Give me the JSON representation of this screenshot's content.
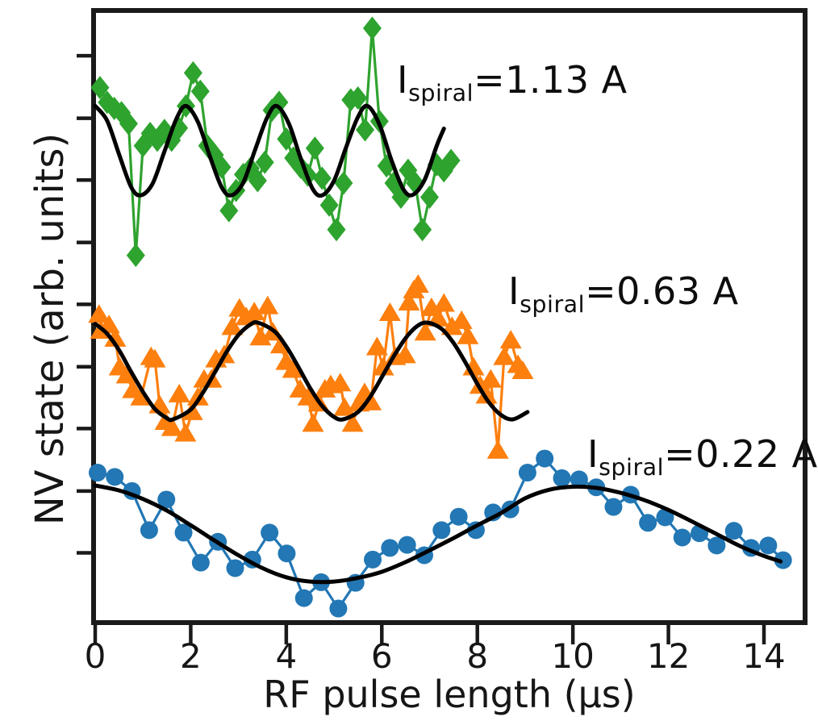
{
  "figure": {
    "xlabel": "RF pulse length (μs)",
    "ylabel": "NV state (arb. units)"
  },
  "chart_data": {
    "type": "line",
    "title": "",
    "xlabel": "RF pulse length (μs)",
    "ylabel": "NV state (arb. units)",
    "xlim": [
      0,
      14.9
    ],
    "ylim": [
      0,
      100
    ],
    "x_ticks": [
      0,
      2,
      4,
      6,
      8,
      10,
      12,
      14
    ],
    "y_ticks_unlabeled": [
      11.4,
      21.5,
      31.7,
      41.8,
      52.0,
      62.1,
      72.3,
      82.4,
      92.6
    ],
    "grid": false,
    "legend_position": "none (series identified by in-plot annotations)",
    "y_units_note": "y values in arbitrary units, 0-100 of plot height; no y tick labels shown",
    "series": [
      {
        "name": "rabi-1.13A",
        "label": {
          "pre": "I",
          "sub": "spiral",
          "val": "=1.13 A"
        },
        "marker": "diamond",
        "color": "#2ea32e",
        "fit_color": "#000000",
        "points": [
          [
            0.1,
            87.4
          ],
          [
            0.25,
            85.0
          ],
          [
            0.4,
            84.0
          ],
          [
            0.55,
            83.3
          ],
          [
            0.7,
            81.5
          ],
          [
            0.85,
            60.0
          ],
          [
            1.0,
            77.9
          ],
          [
            1.15,
            79.9
          ],
          [
            1.3,
            78.8
          ],
          [
            1.45,
            80.4
          ],
          [
            1.6,
            78.8
          ],
          [
            1.75,
            80.8
          ],
          [
            1.9,
            84.4
          ],
          [
            2.05,
            89.8
          ],
          [
            2.2,
            86.8
          ],
          [
            2.35,
            77.9
          ],
          [
            2.5,
            76.4
          ],
          [
            2.65,
            74.4
          ],
          [
            2.8,
            67.3
          ],
          [
            2.95,
            70.6
          ],
          [
            3.1,
            73.2
          ],
          [
            3.25,
            74.2
          ],
          [
            3.4,
            72.2
          ],
          [
            3.55,
            75.2
          ],
          [
            3.7,
            83.7
          ],
          [
            3.85,
            85.0
          ],
          [
            4.0,
            79.0
          ],
          [
            4.15,
            75.9
          ],
          [
            4.3,
            74.4
          ],
          [
            4.45,
            73.1
          ],
          [
            4.6,
            77.5
          ],
          [
            4.75,
            72.6
          ],
          [
            4.9,
            68.2
          ],
          [
            5.05,
            64.2
          ],
          [
            5.2,
            71.8
          ],
          [
            5.35,
            85.4
          ],
          [
            5.5,
            85.7
          ],
          [
            5.65,
            80.5
          ],
          [
            5.8,
            97.1
          ],
          [
            5.95,
            81.9
          ],
          [
            6.1,
            74.6
          ],
          [
            6.25,
            71.8
          ],
          [
            6.4,
            69.5
          ],
          [
            6.55,
            73.9
          ],
          [
            6.7,
            71.8
          ],
          [
            6.85,
            64.2
          ],
          [
            7.0,
            69.5
          ],
          [
            7.15,
            74.8
          ],
          [
            7.3,
            73.8
          ],
          [
            7.45,
            75.5
          ]
        ],
        "fit": [
          [
            0.0,
            84.4
          ],
          [
            0.25,
            82.0
          ],
          [
            0.5,
            76.5
          ],
          [
            0.75,
            71.2
          ],
          [
            0.95,
            69.8
          ],
          [
            1.2,
            71.7
          ],
          [
            1.45,
            77.0
          ],
          [
            1.7,
            82.3
          ],
          [
            1.9,
            84.4
          ],
          [
            2.15,
            81.8
          ],
          [
            2.4,
            76.2
          ],
          [
            2.65,
            71.1
          ],
          [
            2.85,
            69.8
          ],
          [
            3.1,
            71.9
          ],
          [
            3.35,
            77.3
          ],
          [
            3.6,
            82.5
          ],
          [
            3.8,
            84.4
          ],
          [
            4.05,
            81.6
          ],
          [
            4.3,
            75.9
          ],
          [
            4.55,
            70.9
          ],
          [
            4.75,
            69.8
          ],
          [
            5.0,
            72.2
          ],
          [
            5.25,
            77.6
          ],
          [
            5.5,
            82.6
          ],
          [
            5.7,
            84.4
          ],
          [
            5.95,
            81.4
          ],
          [
            6.2,
            75.6
          ],
          [
            6.45,
            70.8
          ],
          [
            6.65,
            69.9
          ],
          [
            6.9,
            72.4
          ],
          [
            7.15,
            77.9
          ],
          [
            7.3,
            80.7
          ]
        ]
      },
      {
        "name": "rabi-0.63A",
        "label": {
          "pre": "I",
          "sub": "spiral",
          "val": "=0.63 A"
        },
        "marker": "triangle",
        "color": "#fd7f0e",
        "fit_color": "#000000",
        "points": [
          [
            0.08,
            50.3
          ],
          [
            0.12,
            47.7
          ],
          [
            0.29,
            48.6
          ],
          [
            0.42,
            46.4
          ],
          [
            0.51,
            41.7
          ],
          [
            0.66,
            40.4
          ],
          [
            0.79,
            38.0
          ],
          [
            0.96,
            36.8
          ],
          [
            1.17,
            43.4
          ],
          [
            1.25,
            43.0
          ],
          [
            1.35,
            35.5
          ],
          [
            1.47,
            32.8
          ],
          [
            1.61,
            31.8
          ],
          [
            1.76,
            37.3
          ],
          [
            1.89,
            30.9
          ],
          [
            2.03,
            34.4
          ],
          [
            2.15,
            36.8
          ],
          [
            2.28,
            39.7
          ],
          [
            2.43,
            39.7
          ],
          [
            2.53,
            43.0
          ],
          [
            2.7,
            43.7
          ],
          [
            2.87,
            48.3
          ],
          [
            3.02,
            51.3
          ],
          [
            3.16,
            49.9
          ],
          [
            3.33,
            50.7
          ],
          [
            3.46,
            46.6
          ],
          [
            3.61,
            51.7
          ],
          [
            3.72,
            47.4
          ],
          [
            3.89,
            45.3
          ],
          [
            4.0,
            42.6
          ],
          [
            4.14,
            41.3
          ],
          [
            4.29,
            38.1
          ],
          [
            4.46,
            36.8
          ],
          [
            4.56,
            32.5
          ],
          [
            4.68,
            35.8
          ],
          [
            4.81,
            38.1
          ],
          [
            4.93,
            38.8
          ],
          [
            5.13,
            39.1
          ],
          [
            5.22,
            35.1
          ],
          [
            5.39,
            32.5
          ],
          [
            5.52,
            35.8
          ],
          [
            5.64,
            37.5
          ],
          [
            5.77,
            36.0
          ],
          [
            5.9,
            45.0
          ],
          [
            6.03,
            41.7
          ],
          [
            6.17,
            50.6
          ],
          [
            6.28,
            43.4
          ],
          [
            6.49,
            43.7
          ],
          [
            6.57,
            52.3
          ],
          [
            6.67,
            54.3
          ],
          [
            6.76,
            55.2
          ],
          [
            6.91,
            47.4
          ],
          [
            7.04,
            51.4
          ],
          [
            7.18,
            49.7
          ],
          [
            7.3,
            52.1
          ],
          [
            7.47,
            48.3
          ],
          [
            7.67,
            49.3
          ],
          [
            7.8,
            46.8
          ],
          [
            7.92,
            41.7
          ],
          [
            8.06,
            38.7
          ],
          [
            8.19,
            37.1
          ],
          [
            8.28,
            39.7
          ],
          [
            8.43,
            28.1
          ],
          [
            8.56,
            43.4
          ],
          [
            8.7,
            46.1
          ],
          [
            8.85,
            42.1
          ],
          [
            8.95,
            41.1
          ]
        ],
        "fit": [
          [
            0.0,
            48.8
          ],
          [
            0.25,
            47.2
          ],
          [
            0.5,
            44.5
          ],
          [
            0.75,
            41.0
          ],
          [
            1.0,
            37.7
          ],
          [
            1.25,
            34.9
          ],
          [
            1.5,
            33.4
          ],
          [
            1.63,
            33.2
          ],
          [
            2.0,
            34.8
          ],
          [
            2.25,
            37.5
          ],
          [
            2.5,
            40.8
          ],
          [
            2.75,
            44.2
          ],
          [
            3.0,
            47.0
          ],
          [
            3.25,
            48.7
          ],
          [
            3.41,
            49.0
          ],
          [
            3.75,
            47.6
          ],
          [
            4.0,
            45.1
          ],
          [
            4.25,
            41.8
          ],
          [
            4.5,
            38.3
          ],
          [
            4.75,
            35.4
          ],
          [
            5.0,
            33.6
          ],
          [
            5.19,
            33.2
          ],
          [
            5.5,
            34.4
          ],
          [
            5.75,
            36.8
          ],
          [
            6.0,
            40.1
          ],
          [
            6.25,
            43.5
          ],
          [
            6.5,
            46.5
          ],
          [
            6.75,
            48.5
          ],
          [
            6.96,
            49.0
          ],
          [
            7.25,
            48.0
          ],
          [
            7.5,
            45.7
          ],
          [
            7.75,
            42.5
          ],
          [
            8.0,
            39.0
          ],
          [
            8.25,
            35.9
          ],
          [
            8.5,
            33.9
          ],
          [
            8.74,
            33.2
          ],
          [
            9.05,
            34.4
          ]
        ]
      },
      {
        "name": "rabi-0.22A",
        "label": {
          "pre": "I",
          "sub": "spiral",
          "val": "=0.22 A"
        },
        "marker": "circle",
        "color": "#2277b4",
        "fit_color": "#000000",
        "points": [
          [
            0.05,
            24.5
          ],
          [
            0.41,
            23.8
          ],
          [
            0.77,
            21.5
          ],
          [
            1.13,
            15.1
          ],
          [
            1.49,
            20.1
          ],
          [
            1.85,
            14.7
          ],
          [
            2.21,
            9.8
          ],
          [
            2.57,
            13.2
          ],
          [
            2.93,
            8.9
          ],
          [
            3.29,
            10.3
          ],
          [
            3.65,
            14.7
          ],
          [
            4.01,
            11.3
          ],
          [
            4.37,
            4.0
          ],
          [
            4.73,
            6.6
          ],
          [
            5.09,
            2.3
          ],
          [
            5.45,
            6.5
          ],
          [
            5.81,
            10.3
          ],
          [
            6.17,
            12.2
          ],
          [
            6.53,
            12.7
          ],
          [
            6.89,
            11.0
          ],
          [
            7.25,
            15.1
          ],
          [
            7.61,
            17.3
          ],
          [
            7.97,
            15.1
          ],
          [
            8.33,
            18.0
          ],
          [
            8.69,
            18.5
          ],
          [
            9.05,
            24.5
          ],
          [
            9.41,
            26.8
          ],
          [
            9.77,
            23.6
          ],
          [
            10.13,
            23.4
          ],
          [
            10.49,
            22.1
          ],
          [
            10.85,
            18.9
          ],
          [
            11.21,
            20.9
          ],
          [
            11.57,
            16.3
          ],
          [
            11.93,
            17.2
          ],
          [
            12.29,
            13.9
          ],
          [
            12.65,
            14.6
          ],
          [
            13.01,
            12.6
          ],
          [
            13.37,
            15.0
          ],
          [
            13.73,
            12.2
          ],
          [
            14.09,
            12.6
          ],
          [
            14.4,
            10.2
          ]
        ],
        "fit": [
          [
            0.0,
            22.4
          ],
          [
            0.5,
            21.6
          ],
          [
            1.0,
            20.2
          ],
          [
            1.5,
            18.3
          ],
          [
            2.0,
            15.9
          ],
          [
            2.5,
            13.4
          ],
          [
            3.0,
            11.0
          ],
          [
            3.5,
            8.9
          ],
          [
            4.0,
            7.4
          ],
          [
            4.5,
            6.7
          ],
          [
            5.0,
            6.7
          ],
          [
            5.5,
            7.3
          ],
          [
            6.0,
            8.3
          ],
          [
            6.5,
            9.9
          ],
          [
            7.0,
            11.8
          ],
          [
            7.5,
            13.8
          ],
          [
            8.0,
            15.9
          ],
          [
            8.5,
            17.9
          ],
          [
            9.0,
            20.3
          ],
          [
            9.5,
            21.7
          ],
          [
            10.0,
            22.2
          ],
          [
            10.5,
            22.0
          ],
          [
            11.0,
            21.2
          ],
          [
            11.5,
            20.0
          ],
          [
            12.0,
            18.4
          ],
          [
            12.5,
            16.5
          ],
          [
            13.0,
            14.5
          ],
          [
            13.5,
            12.5
          ],
          [
            14.0,
            10.9
          ],
          [
            14.35,
            10.0
          ]
        ]
      }
    ],
    "frame_color": "#1a1a1a"
  }
}
